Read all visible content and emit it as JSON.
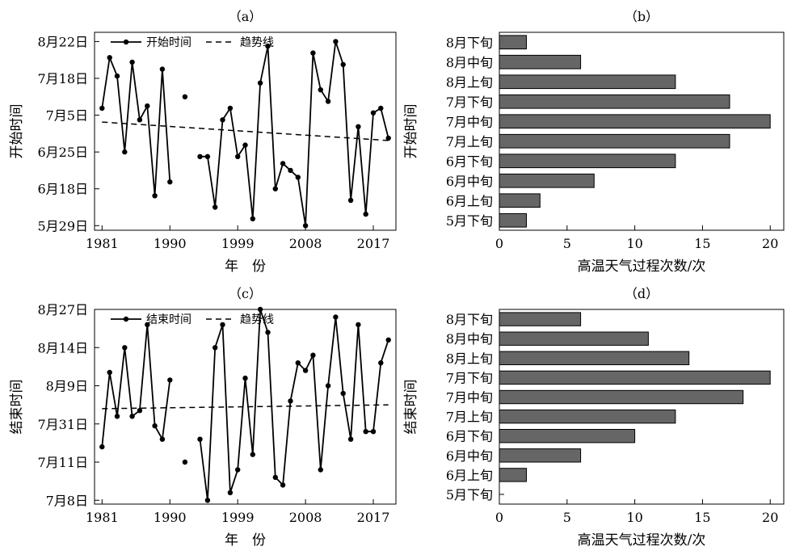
{
  "chart_data": [
    {
      "panel": "a",
      "type": "line",
      "panel_label": "（a）",
      "xlabel": "年　份",
      "ylabel": "开始时间",
      "legend": {
        "placement": "top-left",
        "entries": [
          "开始时间",
          "趋势线"
        ]
      },
      "x_ticks": [
        1981,
        1990,
        1999,
        2008,
        2017
      ],
      "xlim": [
        1980,
        2020
      ],
      "ylim": [
        -2,
        84
      ],
      "y_ticks": [
        {
          "label": "5月29日",
          "value": 0
        },
        {
          "label": "6月18日",
          "value": 16
        },
        {
          "label": "6月25日",
          "value": 32
        },
        {
          "label": "7月5日",
          "value": 48
        },
        {
          "label": "7月18日",
          "value": 64
        },
        {
          "label": "8月22日",
          "value": 80
        }
      ],
      "series": [
        {
          "name": "开始时间",
          "x": [
            1981,
            1982,
            1983,
            1984,
            1985,
            1986,
            1987,
            1988,
            1989,
            1990,
            1991,
            1992,
            1993,
            1994,
            1995,
            1996,
            1997,
            1998,
            1999,
            2000,
            2001,
            2002,
            2003,
            2004,
            2005,
            2006,
            2007,
            2008,
            2009,
            2010,
            2011,
            2012,
            2013,
            2014,
            2015,
            2016,
            2017,
            2018,
            2019
          ],
          "y": [
            51,
            73,
            65,
            32,
            71,
            46,
            52,
            13,
            68,
            19,
            null,
            56,
            null,
            30,
            30,
            8,
            46,
            51,
            30,
            35,
            3,
            62,
            78,
            16,
            27,
            24,
            21,
            0,
            75,
            59,
            54,
            80,
            70,
            11,
            43,
            5,
            49,
            51,
            38
          ]
        }
      ],
      "trend": {
        "name": "趋势线",
        "x": [
          1981,
          2019
        ],
        "y": [
          45,
          37
        ]
      }
    },
    {
      "panel": "b",
      "type": "bar",
      "panel_label": "（b）",
      "xlabel": "高温天气过程次数/次",
      "ylabel": "开始时间",
      "categories": [
        "5月下旬",
        "6月上旬",
        "6月中旬",
        "6月下旬",
        "7月上旬",
        "7月中旬",
        "7月下旬",
        "8月上旬",
        "8月中旬",
        "8月下旬"
      ],
      "values": [
        2,
        3,
        7,
        13,
        17,
        20,
        17,
        13,
        6,
        2
      ],
      "xlim": [
        0,
        21
      ],
      "x_ticks": [
        0,
        5,
        10,
        15,
        20
      ]
    },
    {
      "panel": "c",
      "type": "line",
      "panel_label": "（c）",
      "xlabel": "年　份",
      "ylabel": "结束时间",
      "legend": {
        "placement": "top-left",
        "entries": [
          "结束时间",
          "趋势线"
        ]
      },
      "x_ticks": [
        1981,
        1990,
        1999,
        2008,
        2017
      ],
      "xlim": [
        1980,
        2020
      ],
      "ylim": [
        -2,
        100
      ],
      "y_ticks": [
        {
          "label": "7月8日",
          "value": 0
        },
        {
          "label": "7月11日",
          "value": 20
        },
        {
          "label": "7月31日",
          "value": 40
        },
        {
          "label": "8月9日",
          "value": 60
        },
        {
          "label": "8月14日",
          "value": 80
        },
        {
          "label": "8月27日",
          "value": 100
        }
      ],
      "series": [
        {
          "name": "结束时间",
          "x": [
            1981,
            1982,
            1983,
            1984,
            1985,
            1986,
            1987,
            1988,
            1989,
            1990,
            1991,
            1992,
            1993,
            1994,
            1995,
            1996,
            1997,
            1998,
            1999,
            2000,
            2001,
            2002,
            2003,
            2004,
            2005,
            2006,
            2007,
            2008,
            2009,
            2010,
            2011,
            2012,
            2013,
            2014,
            2015,
            2016,
            2017,
            2018,
            2019
          ],
          "y": [
            28,
            67,
            44,
            80,
            44,
            47,
            92,
            39,
            32,
            63,
            null,
            20,
            null,
            32,
            0,
            80,
            92,
            4,
            16,
            64,
            24,
            100,
            88,
            12,
            8,
            52,
            72,
            68,
            76,
            16,
            60,
            96,
            56,
            32,
            92,
            36,
            36,
            72,
            84
          ]
        }
      ],
      "trend": {
        "name": "趋势线",
        "x": [
          1981,
          2019
        ],
        "y": [
          48,
          50
        ]
      }
    },
    {
      "panel": "d",
      "type": "bar",
      "panel_label": "（d）",
      "xlabel": "高温天气过程次数/次",
      "ylabel": "结束时间",
      "categories": [
        "5月下旬",
        "6月上旬",
        "6月中旬",
        "6月下旬",
        "7月上旬",
        "7月中旬",
        "7月下旬",
        "8月上旬",
        "8月中旬",
        "8月下旬"
      ],
      "values": [
        0,
        2,
        6,
        10,
        13,
        18,
        20,
        14,
        11,
        6
      ],
      "xlim": [
        0,
        21
      ],
      "x_ticks": [
        0,
        5,
        10,
        15,
        20
      ]
    }
  ],
  "style": {
    "line_color": "#000000",
    "bar_fill": "#666666",
    "bar_stroke": "#000000"
  }
}
